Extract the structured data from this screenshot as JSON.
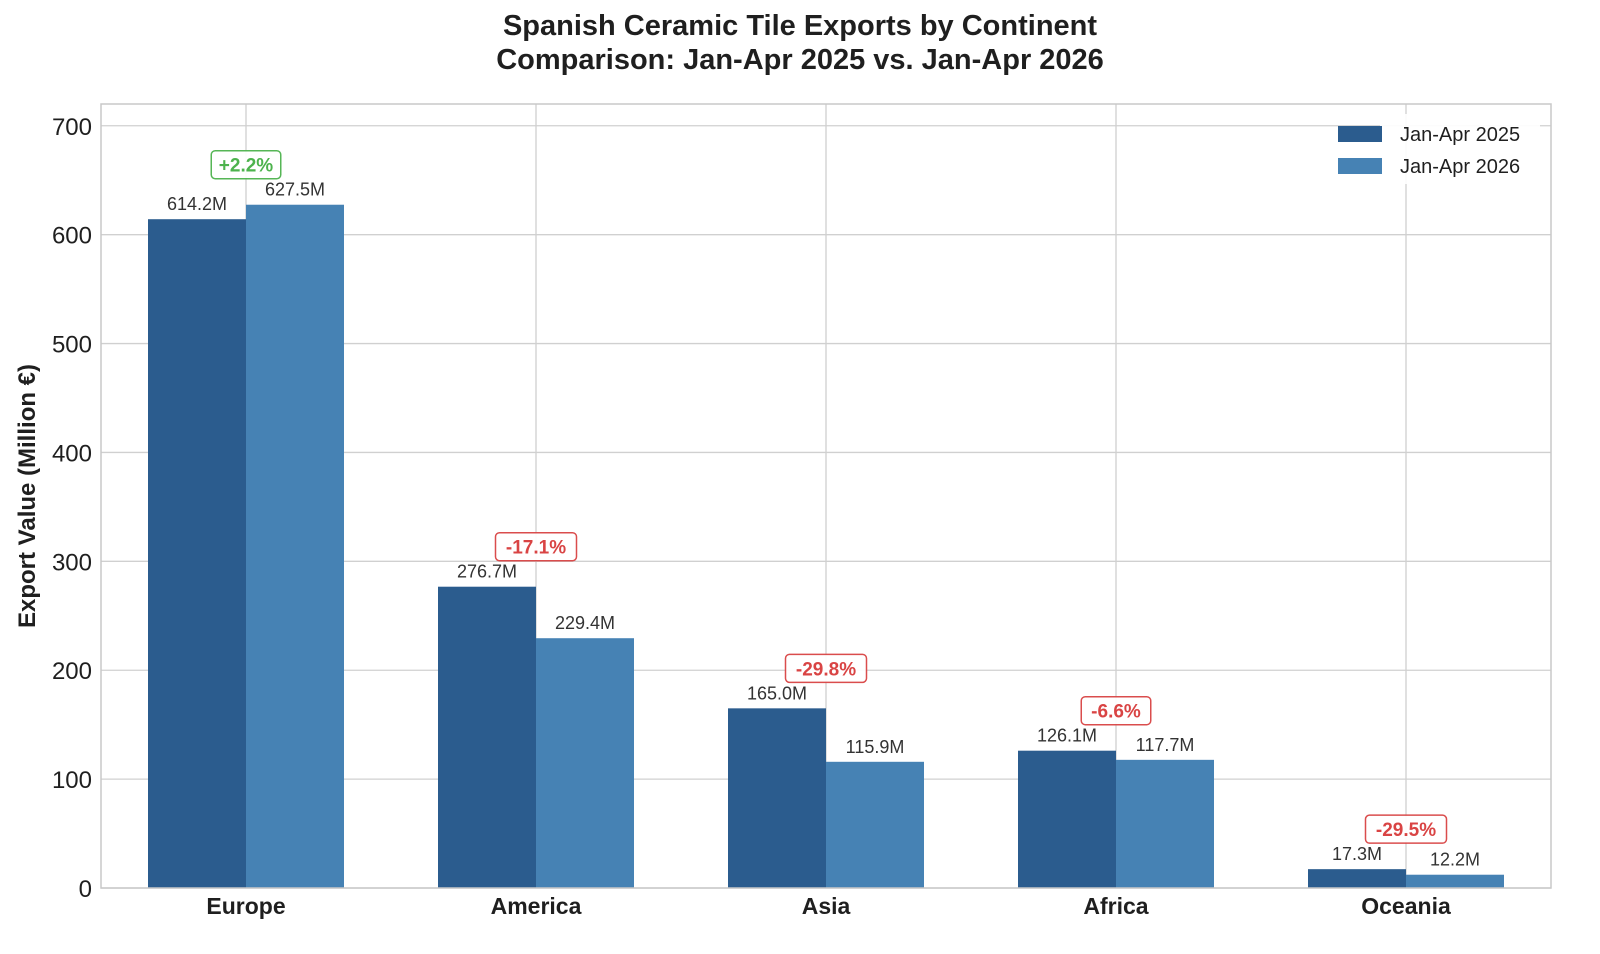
{
  "chart_data": {
    "type": "bar",
    "title": "Spanish Ceramic Tile Exports by Continent",
    "subtitle": "Comparison: Jan-Apr 2025 vs. Jan-Apr 2026",
    "xlabel": "",
    "ylabel": "Export Value (Million €)",
    "ylim": [
      0,
      720
    ],
    "yticks": [
      0,
      100,
      200,
      300,
      400,
      500,
      600,
      700
    ],
    "grid": true,
    "legend_position": "top-right",
    "categories": [
      "Europe",
      "America",
      "Asia",
      "Africa",
      "Oceania"
    ],
    "series": [
      {
        "name": "Jan-Apr 2025",
        "color": "#2b5c8e",
        "values": [
          614.2,
          276.7,
          165.0,
          126.1,
          17.3
        ],
        "labels": [
          "614.2M",
          "276.7M",
          "165.0M",
          "126.1M",
          "17.3M"
        ]
      },
      {
        "name": "Jan-Apr 2026",
        "color": "#4682b4",
        "values": [
          627.5,
          229.4,
          115.9,
          117.7,
          12.2
        ],
        "labels": [
          "627.5M",
          "229.4M",
          "115.9M",
          "117.7M",
          "12.2M"
        ]
      }
    ],
    "change_annotations": [
      {
        "text": "+2.2%",
        "value": 2.2,
        "color": "#4db34d"
      },
      {
        "text": "-17.1%",
        "value": -17.1,
        "color": "#d94444"
      },
      {
        "text": "-29.8%",
        "value": -29.8,
        "color": "#d94444"
      },
      {
        "text": "-6.6%",
        "value": -6.6,
        "color": "#d94444"
      },
      {
        "text": "-29.5%",
        "value": -29.5,
        "color": "#d94444"
      }
    ]
  }
}
